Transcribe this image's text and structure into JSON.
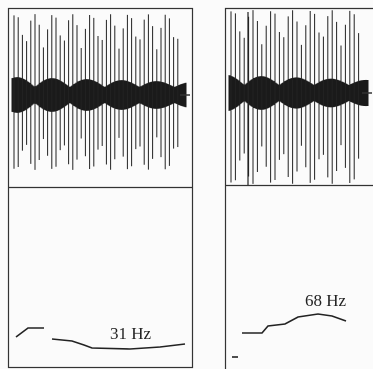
{
  "panels": [
    {
      "label": "31 Hz"
    },
    {
      "label": "68 Hz"
    }
  ]
}
